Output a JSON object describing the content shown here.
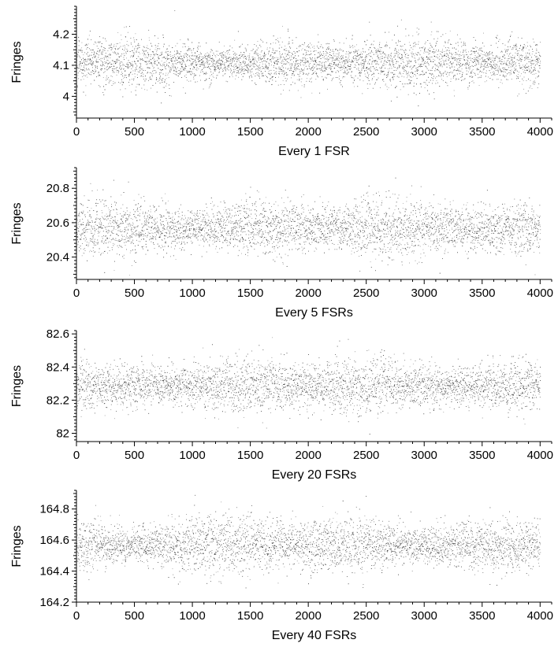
{
  "chart_data": [
    {
      "type": "scatter",
      "xlabel": "Every 1 FSR",
      "ylabel": "Fringes",
      "xlim": [
        0,
        4100
      ],
      "ylim": [
        3.93,
        4.29
      ],
      "xticks": [
        "0",
        "500",
        "1000",
        "1500",
        "2000",
        "2500",
        "3000",
        "3500",
        "4000"
      ],
      "yticks": [
        "4",
        "4.1",
        "4.2"
      ],
      "series": [
        {
          "x_range": [
            0,
            4000
          ],
          "center": 4.11,
          "spread": 0.035,
          "n_points": 4000
        }
      ]
    },
    {
      "type": "scatter",
      "xlabel": "Every 5 FSRs",
      "ylabel": "Fringes",
      "xlim": [
        0,
        4100
      ],
      "ylim": [
        20.27,
        20.92
      ],
      "xticks": [
        "0",
        "500",
        "1000",
        "1500",
        "2000",
        "2500",
        "3000",
        "3500",
        "4000"
      ],
      "yticks": [
        "20.4",
        "20.6",
        "20.8"
      ],
      "series": [
        {
          "x_range": [
            0,
            4000
          ],
          "center": 20.57,
          "spread": 0.075,
          "n_points": 4000
        }
      ]
    },
    {
      "type": "scatter",
      "xlabel": "Every 20 FSRs",
      "ylabel": "Fringes",
      "xlim": [
        0,
        4100
      ],
      "ylim": [
        81.95,
        82.62
      ],
      "xticks": [
        "0",
        "500",
        "1000",
        "1500",
        "2000",
        "2500",
        "3000",
        "3500",
        "4000"
      ],
      "yticks": [
        "82",
        "82.2",
        "82.4",
        "82.6"
      ],
      "series": [
        {
          "x_range": [
            0,
            4000
          ],
          "center": 82.29,
          "spread": 0.075,
          "n_points": 4000
        }
      ]
    },
    {
      "type": "scatter",
      "xlabel": "Every 40 FSRs",
      "ylabel": "Fringes",
      "xlim": [
        0,
        4100
      ],
      "ylim": [
        164.2,
        164.92
      ],
      "xticks": [
        "0",
        "500",
        "1000",
        "1500",
        "2000",
        "2500",
        "3000",
        "3500",
        "4000"
      ],
      "yticks": [
        "164.2",
        "164.4",
        "164.6",
        "164.8"
      ],
      "series": [
        {
          "x_range": [
            0,
            4000
          ],
          "center": 164.57,
          "spread": 0.08,
          "n_points": 4000
        }
      ]
    }
  ]
}
